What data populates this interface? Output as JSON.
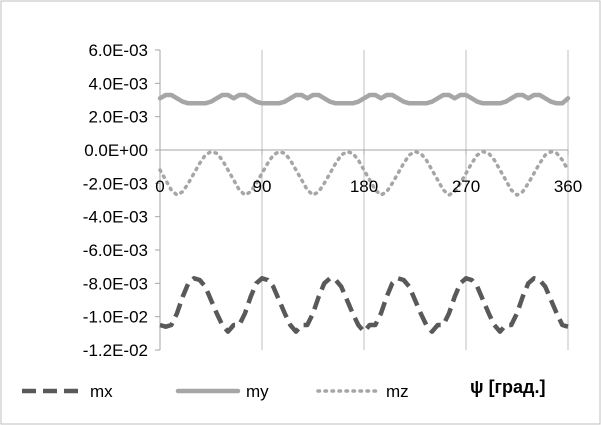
{
  "chart_data": {
    "type": "line",
    "xlabel": "ψ [град.]",
    "ylabel": "",
    "xlim": [
      0,
      360
    ],
    "ylim": [
      -0.012,
      0.006
    ],
    "x_ticks": [
      {
        "value": 0,
        "label": "0"
      },
      {
        "value": 90,
        "label": "90"
      },
      {
        "value": 180,
        "label": "180"
      },
      {
        "value": 270,
        "label": "270"
      },
      {
        "value": 360,
        "label": "360"
      }
    ],
    "y_ticks": [
      {
        "value": 0.006,
        "label": "6.0E-03"
      },
      {
        "value": 0.004,
        "label": "4.0E-03"
      },
      {
        "value": 0.002,
        "label": "2.0E-03"
      },
      {
        "value": 0.0,
        "label": "0.0E+00"
      },
      {
        "value": -0.002,
        "label": "-2.0E-03"
      },
      {
        "value": -0.004,
        "label": "-4.0E-03"
      },
      {
        "value": -0.006,
        "label": "-6.0E-03"
      },
      {
        "value": -0.008,
        "label": "-8.0E-03"
      },
      {
        "value": -0.01,
        "label": "-1.0E-02"
      },
      {
        "value": -0.012,
        "label": "-1.2E-02"
      }
    ],
    "grid": "vertical",
    "legend_position": "bottom",
    "x": [
      0,
      5,
      10,
      15,
      20,
      25,
      30,
      35,
      40,
      45,
      50,
      55,
      60,
      65,
      70,
      75,
      80,
      85,
      90,
      95,
      100,
      105,
      110,
      115,
      120,
      125,
      130,
      135,
      140,
      145,
      150,
      155,
      160,
      165,
      170,
      175,
      180,
      185,
      190,
      195,
      200,
      205,
      210,
      215,
      220,
      225,
      230,
      235,
      240,
      245,
      250,
      255,
      260,
      265,
      270,
      275,
      280,
      285,
      290,
      295,
      300,
      305,
      310,
      315,
      320,
      325,
      330,
      335,
      340,
      345,
      350,
      355,
      360
    ],
    "series": [
      {
        "name": "mx",
        "style": "dashed",
        "color": "#595959",
        "values": [
          -0.0105,
          -0.0106,
          -0.0105,
          -0.0098,
          -0.0088,
          -0.008,
          -0.0077,
          -0.0078,
          -0.0082,
          -0.009,
          -0.0098,
          -0.0105,
          -0.0109,
          -0.0105,
          -0.0105,
          -0.0098,
          -0.0088,
          -0.008,
          -0.0077,
          -0.0078,
          -0.0082,
          -0.009,
          -0.0098,
          -0.0105,
          -0.0109,
          -0.0105,
          -0.0105,
          -0.0098,
          -0.0088,
          -0.008,
          -0.0077,
          -0.0078,
          -0.0082,
          -0.009,
          -0.0098,
          -0.0105,
          -0.0109,
          -0.0105,
          -0.0105,
          -0.0098,
          -0.0088,
          -0.008,
          -0.0077,
          -0.0078,
          -0.0082,
          -0.009,
          -0.0098,
          -0.0105,
          -0.0109,
          -0.0105,
          -0.0105,
          -0.0098,
          -0.0088,
          -0.008,
          -0.0077,
          -0.0078,
          -0.0082,
          -0.009,
          -0.0098,
          -0.0105,
          -0.0109,
          -0.0105,
          -0.0105,
          -0.0098,
          -0.0088,
          -0.008,
          -0.0077,
          -0.0078,
          -0.0082,
          -0.009,
          -0.0098,
          -0.0105,
          -0.0106
        ]
      },
      {
        "name": "my",
        "style": "solid",
        "color": "#a6a6a6",
        "values": [
          0.0031,
          0.0033,
          0.0033,
          0.0031,
          0.0029,
          0.0028,
          0.0028,
          0.0028,
          0.0028,
          0.0029,
          0.0031,
          0.0033,
          0.0033,
          0.0031,
          0.0033,
          0.0033,
          0.0031,
          0.0029,
          0.0028,
          0.0028,
          0.0028,
          0.0028,
          0.0029,
          0.0031,
          0.0033,
          0.0033,
          0.0031,
          0.0033,
          0.0033,
          0.0031,
          0.0029,
          0.0028,
          0.0028,
          0.0028,
          0.0028,
          0.0029,
          0.0031,
          0.0033,
          0.0033,
          0.0031,
          0.0033,
          0.0033,
          0.0031,
          0.0029,
          0.0028,
          0.0028,
          0.0028,
          0.0028,
          0.0029,
          0.0031,
          0.0033,
          0.0033,
          0.0031,
          0.0033,
          0.0033,
          0.0031,
          0.0029,
          0.0028,
          0.0028,
          0.0028,
          0.0028,
          0.0029,
          0.0031,
          0.0033,
          0.0033,
          0.0031,
          0.0033,
          0.0033,
          0.0031,
          0.0029,
          0.0028,
          0.0028,
          0.0031
        ]
      },
      {
        "name": "mz",
        "style": "dotted",
        "color": "#a6a6a6",
        "values": [
          -0.0012,
          -0.0018,
          -0.0024,
          -0.0027,
          -0.0025,
          -0.002,
          -0.0014,
          -0.0008,
          -0.0003,
          -0.0001,
          -0.0002,
          -0.0006,
          -0.0012,
          -0.0018,
          -0.0024,
          -0.0027,
          -0.0025,
          -0.002,
          -0.0014,
          -0.0008,
          -0.0003,
          -0.0001,
          -0.0002,
          -0.0006,
          -0.0012,
          -0.0018,
          -0.0024,
          -0.0027,
          -0.0025,
          -0.002,
          -0.0014,
          -0.0008,
          -0.0003,
          -0.0001,
          -0.0002,
          -0.0006,
          -0.0012,
          -0.0018,
          -0.0024,
          -0.0027,
          -0.0025,
          -0.002,
          -0.0014,
          -0.0008,
          -0.0003,
          -0.0001,
          -0.0002,
          -0.0006,
          -0.0012,
          -0.0018,
          -0.0024,
          -0.0027,
          -0.0025,
          -0.002,
          -0.0014,
          -0.0008,
          -0.0003,
          -0.0001,
          -0.0002,
          -0.0006,
          -0.0012,
          -0.0018,
          -0.0024,
          -0.0027,
          -0.0025,
          -0.002,
          -0.0014,
          -0.0008,
          -0.0003,
          -0.0001,
          -0.0002,
          -0.0006,
          -0.0012
        ]
      }
    ]
  }
}
